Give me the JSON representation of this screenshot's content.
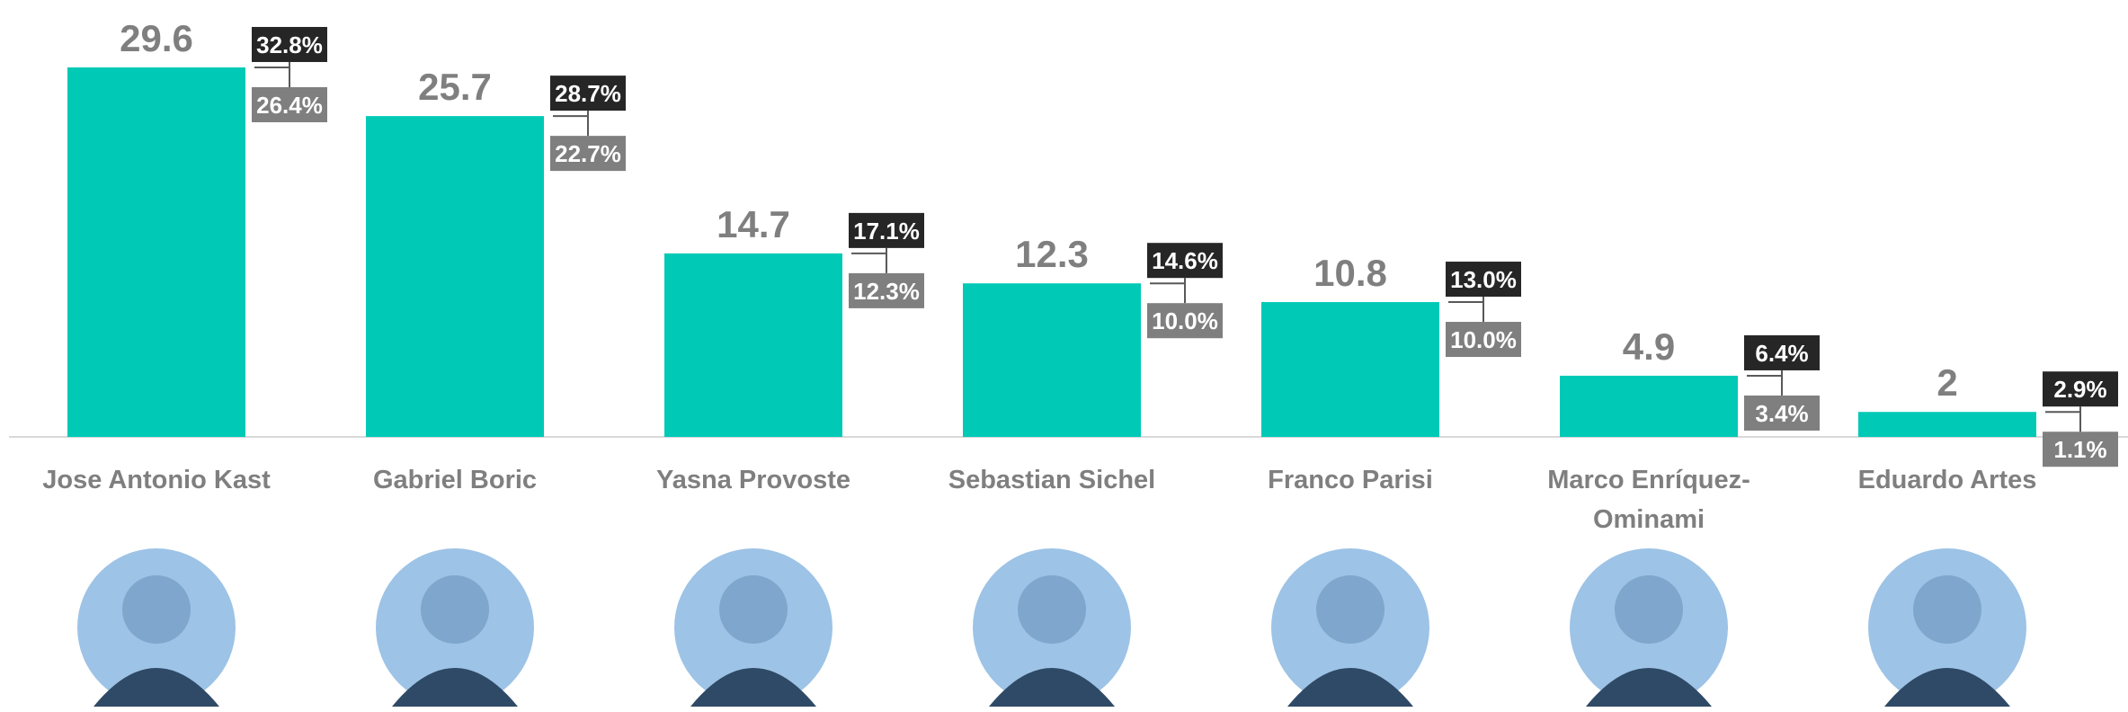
{
  "chart_data": {
    "type": "bar",
    "categories": [
      "Jose Antonio Kast",
      "Gabriel Boric",
      "Yasna Provoste",
      "Sebastian Sichel",
      "Franco Parisi",
      "Marco Enríquez-Ominami",
      "Eduardo Artes"
    ],
    "values": [
      29.6,
      25.7,
      14.7,
      12.3,
      10.8,
      4.9,
      2
    ],
    "error_high": [
      32.8,
      28.7,
      17.1,
      14.6,
      13.0,
      6.4,
      2.9
    ],
    "error_high_labels": [
      "32.8%",
      "28.7%",
      "17.1%",
      "14.6%",
      "13.0%",
      "6.4%",
      "2.9%"
    ],
    "error_low": [
      26.4,
      22.7,
      12.3,
      10.0,
      10.0,
      3.4,
      1.1
    ],
    "error_low_labels": [
      "26.4%",
      "22.7%",
      "12.3%",
      "10.0%",
      "10.0%",
      "3.4%",
      "1.1%"
    ],
    "color": "#00c9b6",
    "ylim": [
      0,
      35
    ]
  }
}
